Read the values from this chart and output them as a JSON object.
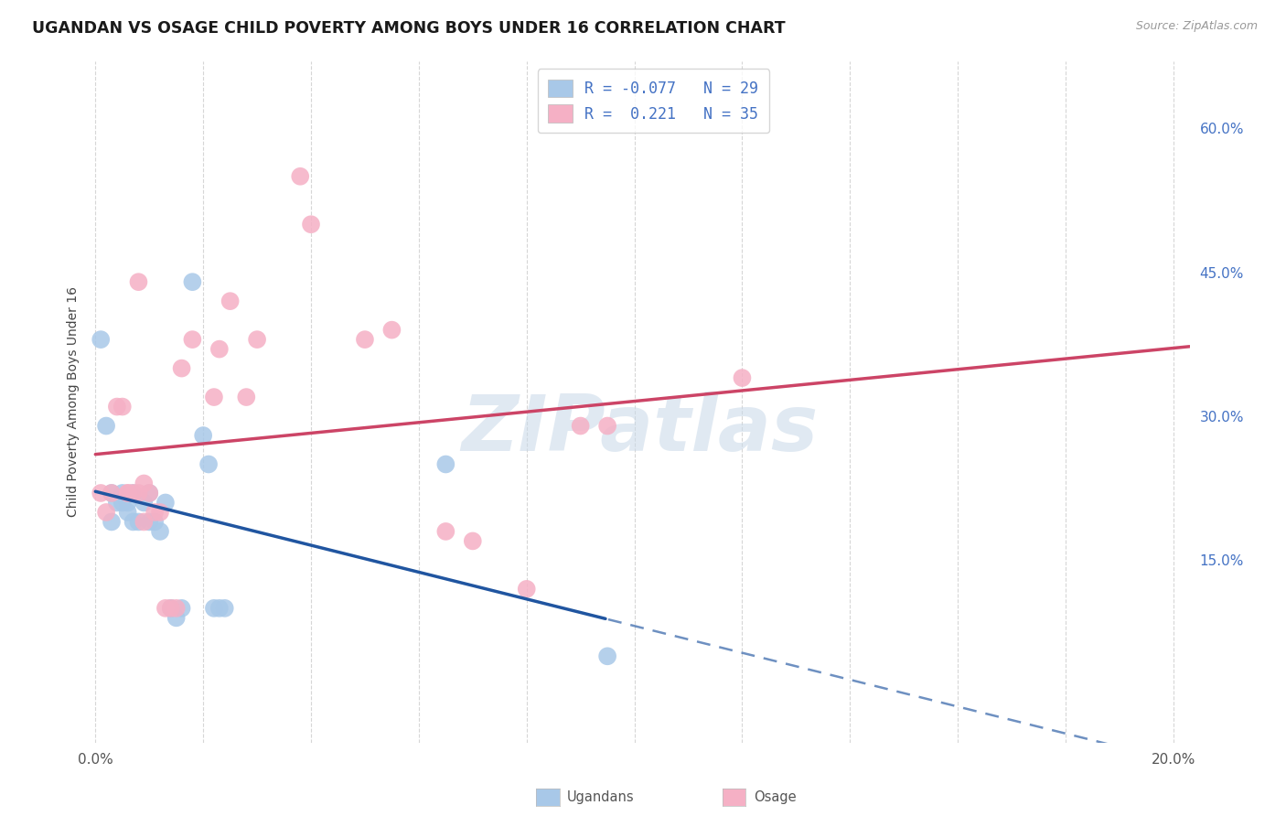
{
  "title": "UGANDAN VS OSAGE CHILD POVERTY AMONG BOYS UNDER 16 CORRELATION CHART",
  "source": "Source: ZipAtlas.com",
  "ylabel": "Child Poverty Among Boys Under 16",
  "right_yticks_labels": [
    "60.0%",
    "45.0%",
    "30.0%",
    "15.0%"
  ],
  "right_yticks_vals": [
    0.6,
    0.45,
    0.3,
    0.15
  ],
  "legend_blue_r": "R = -0.077",
  "legend_blue_n": "N = 29",
  "legend_pink_r": "R =  0.221",
  "legend_pink_n": "N = 35",
  "blue_scatter_color": "#a8c8e8",
  "pink_scatter_color": "#f5b0c5",
  "blue_line_color": "#2055a0",
  "pink_line_color": "#cc4466",
  "legend_text_color": "#4472c4",
  "right_axis_color": "#4472c4",
  "watermark_text": "ZIPatlas",
  "background_color": "#ffffff",
  "grid_color": "#cccccc",
  "bottom_label_ugandans": "Ugandans",
  "bottom_label_osage": "Osage",
  "ugandan_x": [
    0.001,
    0.002,
    0.003,
    0.003,
    0.004,
    0.005,
    0.005,
    0.006,
    0.006,
    0.007,
    0.007,
    0.008,
    0.009,
    0.01,
    0.01,
    0.011,
    0.012,
    0.013,
    0.014,
    0.015,
    0.016,
    0.018,
    0.02,
    0.021,
    0.022,
    0.023,
    0.024,
    0.065,
    0.095
  ],
  "ugandan_y": [
    0.38,
    0.29,
    0.22,
    0.19,
    0.21,
    0.22,
    0.21,
    0.21,
    0.2,
    0.22,
    0.19,
    0.19,
    0.21,
    0.19,
    0.22,
    0.19,
    0.18,
    0.21,
    0.1,
    0.09,
    0.1,
    0.44,
    0.28,
    0.25,
    0.1,
    0.1,
    0.1,
    0.25,
    0.05
  ],
  "osage_x": [
    0.001,
    0.002,
    0.003,
    0.004,
    0.005,
    0.006,
    0.006,
    0.007,
    0.008,
    0.008,
    0.009,
    0.009,
    0.01,
    0.011,
    0.012,
    0.013,
    0.014,
    0.015,
    0.016,
    0.018,
    0.022,
    0.023,
    0.025,
    0.028,
    0.03,
    0.038,
    0.04,
    0.05,
    0.055,
    0.065,
    0.07,
    0.08,
    0.09,
    0.095,
    0.12
  ],
  "osage_y": [
    0.22,
    0.2,
    0.22,
    0.31,
    0.31,
    0.22,
    0.22,
    0.22,
    0.44,
    0.22,
    0.23,
    0.19,
    0.22,
    0.2,
    0.2,
    0.1,
    0.1,
    0.1,
    0.35,
    0.38,
    0.32,
    0.37,
    0.42,
    0.32,
    0.38,
    0.55,
    0.5,
    0.38,
    0.39,
    0.18,
    0.17,
    0.12,
    0.29,
    0.29,
    0.34
  ],
  "xlim_min": -0.001,
  "xlim_max": 0.203,
  "ylim_min": -0.04,
  "ylim_max": 0.67,
  "marker_size": 200,
  "title_fontsize": 12.5,
  "grid_color_alpha": 0.8
}
